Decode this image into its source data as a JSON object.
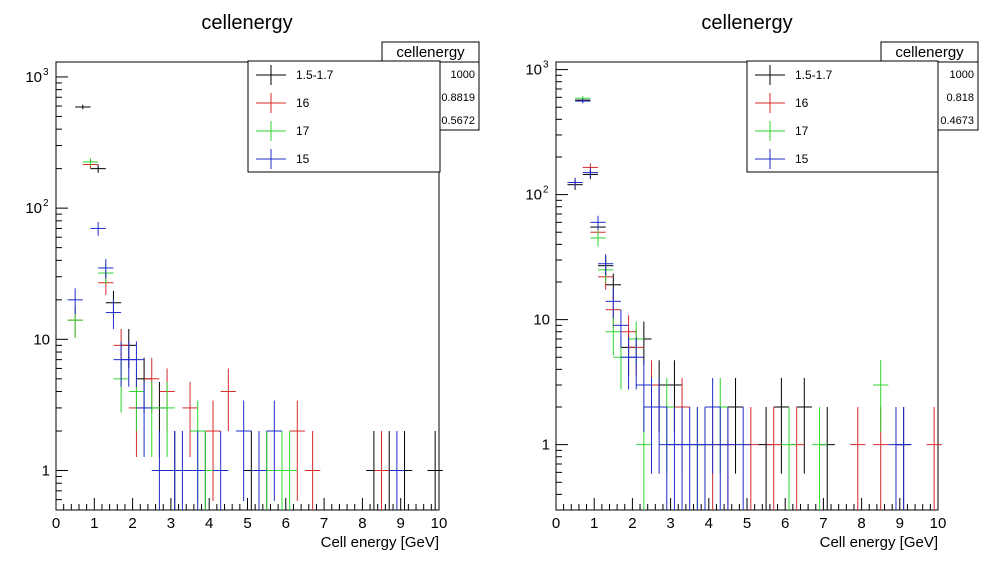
{
  "chart_data": [
    {
      "type": "scatter",
      "title": "cellenergy",
      "xlabel": "Cell energy [GeV]",
      "ylabel": "",
      "xlim": [
        0,
        10
      ],
      "ylim": [
        0.5,
        1300
      ],
      "yscale": "log",
      "bin_width": 0.4,
      "x_ticks": [
        "0",
        "1",
        "2",
        "3",
        "4",
        "5",
        "6",
        "7",
        "8",
        "9",
        "10"
      ],
      "y_ticks": [
        {
          "value": 1,
          "label": "1"
        },
        {
          "value": 10,
          "label": "10"
        },
        {
          "value": 100,
          "label": "10",
          "sup": "2"
        },
        {
          "value": 1000,
          "label": "10",
          "sup": "3"
        }
      ],
      "stats_box": {
        "title": "cellenergy",
        "values": [
          "1000",
          "0.8819",
          "0.5672"
        ]
      },
      "legend": {
        "placement": "top-right"
      },
      "series": [
        {
          "name": "1.5-1.7",
          "color": "#000000",
          "x": [
            0.7,
            1.1,
            1.5,
            1.9,
            2.3,
            2.7,
            3.1,
            3.9,
            5.1,
            5.5,
            8.3,
            8.7,
            9.1,
            9.9
          ],
          "y": [
            590,
            200,
            19,
            9,
            5,
            3,
            1,
            1,
            1,
            1,
            1,
            1,
            1,
            1
          ]
        },
        {
          "name": "16",
          "color": "#d42a2a",
          "x": [
            0.5,
            0.9,
            1.3,
            1.7,
            2.1,
            2.5,
            2.9,
            3.5,
            4.1,
            4.5,
            5.3,
            6.3,
            6.7,
            8.5
          ],
          "y": [
            14,
            215,
            27,
            9,
            3,
            5,
            4,
            3,
            2,
            4,
            1,
            2,
            1,
            1
          ]
        },
        {
          "name": "17",
          "color": "#2ed62e",
          "x": [
            0.5,
            0.9,
            1.3,
            1.7,
            2.1,
            2.5,
            2.9,
            3.7,
            3.9,
            5.5,
            5.9,
            6.1
          ],
          "y": [
            14,
            225,
            32,
            5,
            4,
            3,
            3,
            2,
            1,
            1,
            1,
            1
          ]
        },
        {
          "name": "15",
          "color": "#1f2cc9",
          "x": [
            0.5,
            1.1,
            1.3,
            1.5,
            1.7,
            1.9,
            2.1,
            2.3,
            2.7,
            3.1,
            3.3,
            3.7,
            4.3,
            4.9,
            5.3,
            5.7,
            8.9
          ],
          "y": [
            20,
            70,
            35,
            16,
            7,
            7,
            7,
            3,
            1,
            1,
            1,
            1,
            1,
            2,
            1,
            2,
            1
          ]
        }
      ]
    },
    {
      "type": "scatter",
      "title": "cellenergy",
      "xlabel": "Cell energy [GeV]",
      "ylabel": "",
      "xlim": [
        0,
        10
      ],
      "ylim": [
        0.3,
        1150
      ],
      "yscale": "log",
      "bin_width": 0.4,
      "x_ticks": [
        "0",
        "1",
        "2",
        "3",
        "4",
        "5",
        "6",
        "7",
        "8",
        "9",
        "10"
      ],
      "y_ticks": [
        {
          "value": 1,
          "label": "1"
        },
        {
          "value": 10,
          "label": "10"
        },
        {
          "value": 100,
          "label": "10",
          "sup": "2"
        },
        {
          "value": 1000,
          "label": "10",
          "sup": "3"
        }
      ],
      "stats_box": {
        "title": "cellenergy",
        "values": [
          "1000",
          "0.818",
          "0.4673"
        ]
      },
      "legend": {
        "placement": "top-right"
      },
      "series": [
        {
          "name": "1.5-1.7",
          "color": "#000000",
          "x": [
            0.5,
            0.7,
            0.9,
            1.1,
            1.3,
            1.5,
            1.9,
            2.3,
            2.7,
            3.1,
            4.7,
            5.5,
            5.9,
            6.5,
            7.1,
            9.1
          ],
          "y": [
            120,
            570,
            145,
            55,
            27,
            19,
            6,
            7,
            3,
            3,
            2,
            1,
            2,
            2,
            1,
            1
          ]
        },
        {
          "name": "16",
          "color": "#d42a2a",
          "x": [
            0.5,
            0.9,
            1.1,
            1.3,
            1.5,
            1.9,
            2.1,
            2.5,
            3.3,
            4.1,
            4.5,
            5.1,
            5.7,
            6.3,
            7.9,
            8.5,
            9.9
          ],
          "y": [
            125,
            165,
            50,
            22,
            12,
            8,
            6,
            3,
            2,
            1,
            1,
            1,
            1,
            1,
            1,
            1,
            1
          ]
        },
        {
          "name": "17",
          "color": "#2ed62e",
          "x": [
            0.7,
            1.1,
            1.3,
            1.5,
            1.7,
            2.1,
            2.3,
            2.9,
            3.7,
            3.9,
            4.3,
            6.1,
            6.9,
            8.5
          ],
          "y": [
            590,
            45,
            25,
            8,
            5,
            7,
            1,
            2,
            1,
            1,
            2,
            1,
            1,
            3
          ]
        },
        {
          "name": "15",
          "color": "#1f2cc9",
          "x": [
            0.5,
            0.7,
            0.9,
            1.1,
            1.3,
            1.5,
            1.7,
            1.9,
            2.1,
            2.3,
            2.5,
            2.7,
            2.9,
            3.1,
            3.3,
            3.5,
            3.7,
            3.9,
            4.1,
            4.3,
            4.5,
            4.9,
            8.9,
            9.1
          ],
          "y": [
            125,
            560,
            150,
            60,
            28,
            14,
            9,
            5,
            5,
            3,
            2,
            2,
            1,
            1,
            1,
            1,
            1,
            1,
            2,
            1,
            1,
            1,
            1,
            1
          ]
        }
      ]
    }
  ]
}
